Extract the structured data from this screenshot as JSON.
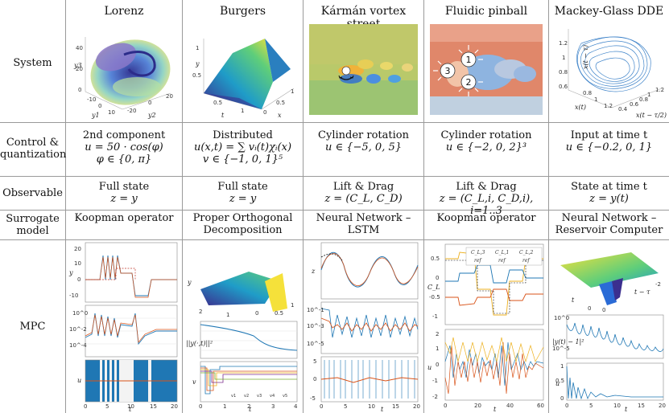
{
  "columns": [
    {
      "title": "Lorenz"
    },
    {
      "title": "Burgers"
    },
    {
      "title": "Kármán vortex street"
    },
    {
      "title": "Fluidic pinball"
    },
    {
      "title": "Mackey-Glass DDE"
    }
  ],
  "rows": {
    "system": "System",
    "control_line1": "Control &",
    "control_line2": "quantization",
    "observable": "Observable",
    "surrogate_line1": "Surrogate",
    "surrogate_line2": "model",
    "mpc": "MPC"
  },
  "control": [
    {
      "l1": "2nd component",
      "l2": "u = 50 · cos(φ)",
      "l3": "φ ∈ {0, π}"
    },
    {
      "l1": "Distributed",
      "l2": "u(x,t) = ∑ vᵢ(t)χᵢ(x)",
      "l3": "v ∈ {−1, 0, 1}⁵"
    },
    {
      "l1": "Cylinder rotation",
      "l2": "u ∈ {−5, 0, 5}",
      "l3": ""
    },
    {
      "l1": "Cylinder rotation",
      "l2": "u ∈ {−2, 0, 2}³",
      "l3": ""
    },
    {
      "l1": "Input at time t",
      "l2": "u ∈ {−0.2, 0, 1}",
      "l3": ""
    }
  ],
  "observable": [
    {
      "l1": "Full state",
      "l2": "z = y"
    },
    {
      "l1": "Full state",
      "l2": "z = y"
    },
    {
      "l1": "Lift & Drag",
      "l2": "z = (C_L, C_D)"
    },
    {
      "l1": "Lift & Drag",
      "l2": "z = (C_L,i, C_D,i), i=1..3"
    },
    {
      "l1": "State at time t",
      "l2": "z = y(t)"
    }
  ],
  "surrogate": [
    {
      "l1": "Koopman operator",
      "l2": ""
    },
    {
      "l1": "Proper Orthogonal",
      "l2": "Decomposition"
    },
    {
      "l1": "Neural Network –",
      "l2": "LSTM"
    },
    {
      "l1": "Koopman operator",
      "l2": ""
    },
    {
      "l1": "Neural Network –",
      "l2": "Reservoir Computer"
    }
  ],
  "pinball_labels": [
    "1",
    "2",
    "3"
  ],
  "system_axes": {
    "lorenz": {
      "z": "y3",
      "x": "y1",
      "y": "y2",
      "zt": [
        "40",
        "20",
        "0"
      ],
      "xt": [
        "-10",
        "0",
        "10"
      ],
      "yt": [
        "-20",
        "0",
        "20"
      ]
    },
    "burgers": {
      "y": "y",
      "x": "x",
      "t": "t",
      "xt": [
        "0",
        "0.5",
        "1"
      ],
      "tt": [
        "0.5",
        "1"
      ],
      "yt": [
        "1",
        "0.5"
      ]
    },
    "mackey": {
      "y": "x(t − τ)",
      "x": "x(t)",
      "z": "x(t − τ/2)",
      "yt": [
        "1.2",
        "1",
        "0.8",
        "0.6"
      ],
      "xt": [
        "0.4",
        "0.6",
        "0.8",
        "1",
        "1.2"
      ]
    }
  },
  "mpc_axes": {
    "lorenz": {
      "ylabels": [
        "y",
        "||z(t) − z^ref(t)||²",
        "u"
      ],
      "xlabel": "t",
      "xticks": [
        "0",
        "5",
        "10",
        "15",
        "20"
      ],
      "p1ticks": [
        "20",
        "10",
        "0",
        "-10"
      ],
      "p2ticks": [
        "10^0",
        "10^-2",
        "10^-4"
      ]
    },
    "burgers": {
      "ylabels": [
        "y",
        "||y(·,t)||²",
        "v"
      ],
      "xlabel": "t",
      "xticks": [
        "0",
        "1",
        "2",
        "3",
        "4"
      ],
      "p1": [
        "2",
        "1",
        "0",
        "0.5",
        "1"
      ],
      "vlegend": [
        "v1",
        "v2",
        "v3",
        "v4",
        "v5"
      ]
    },
    "karman": {
      "ylabels": [
        "z",
        "|C_L − C_L^ref|",
        "u"
      ],
      "xlabel": "t",
      "xticks": [
        "0",
        "5",
        "10",
        "15",
        "20"
      ],
      "p2ticks": [
        "10^-1",
        "10^-3",
        "10^-5"
      ],
      "p3ticks": [
        "5",
        "0",
        "-5"
      ]
    },
    "pinball": {
      "ylabels": [
        "C_L",
        "u"
      ],
      "xlabel": "t",
      "xticks": [
        "0",
        "20",
        "40",
        "60"
      ],
      "p1ticks": [
        "0.5",
        "0",
        "-0.5",
        "-1"
      ],
      "p2ticks": [
        "2",
        "1",
        "0",
        "-1",
        "-2"
      ],
      "legend": [
        "C_L,3",
        "C_L,1",
        "C_L,2",
        "ref",
        "ref",
        "ref"
      ]
    },
    "mackey": {
      "ylabels": [
        "",
        "|y(t) − 1|²",
        "u"
      ],
      "xlabel": "t",
      "zlabel": "t − τ",
      "xticks": [
        "0",
        "5",
        "10",
        "15",
        "20"
      ],
      "p1ticks": [
        "0",
        "0",
        "-2"
      ],
      "p2ticks": [
        "10^0",
        "10^-5"
      ],
      "p3ticks": [
        "1",
        "0.5",
        "0"
      ]
    }
  },
  "colors": {
    "blue": "#1f77b4",
    "orange": "#d95319",
    "yellow": "#edb120",
    "purple": "#7e2f8e",
    "green": "#77ac30",
    "red": "#c0392b",
    "grid": "#9a9a9a"
  }
}
